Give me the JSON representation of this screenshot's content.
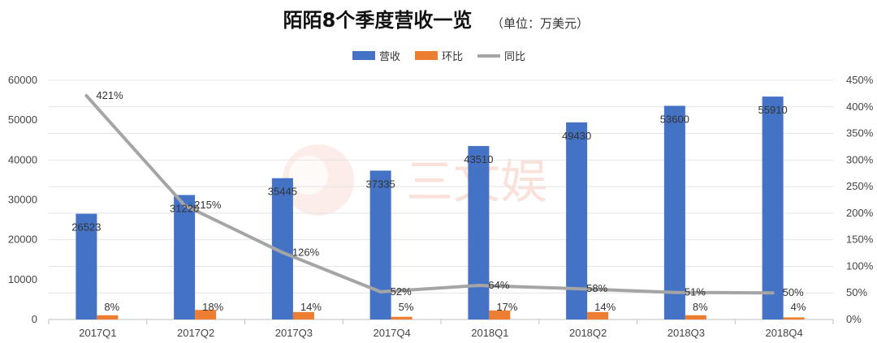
{
  "chart_data": {
    "type": "bar",
    "title": "陌陌8个季度营收一览",
    "subtitle": "（单位：万美元）",
    "categories": [
      "2017Q1",
      "2017Q2",
      "2017Q3",
      "2017Q4",
      "2018Q1",
      "2018Q2",
      "2018Q3",
      "2018Q4"
    ],
    "series": [
      {
        "name": "营收",
        "kind": "bar",
        "axis": "left",
        "values": [
          26523,
          31220,
          35445,
          37335,
          43510,
          49430,
          53600,
          55910
        ],
        "labels": [
          "26523",
          "31220",
          "35445",
          "37335",
          "43510",
          "49430",
          "53600",
          "55910"
        ]
      },
      {
        "name": "环比",
        "kind": "bar",
        "axis": "right",
        "values": [
          8,
          18,
          14,
          5,
          17,
          14,
          8,
          4
        ],
        "labels": [
          "8%",
          "18%",
          "14%",
          "5%",
          "17%",
          "14%",
          "8%",
          "4%"
        ]
      },
      {
        "name": "同比",
        "kind": "line",
        "axis": "right",
        "values": [
          421,
          215,
          126,
          52,
          64,
          58,
          51,
          50
        ],
        "labels": [
          "421%",
          "215%",
          "126%",
          "52%",
          "64%",
          "58%",
          "51%",
          "50%"
        ]
      }
    ],
    "y_left": {
      "lim": [
        0,
        60000
      ],
      "ticks": [
        "0",
        "10000",
        "20000",
        "30000",
        "40000",
        "50000",
        "60000"
      ]
    },
    "y_right": {
      "lim": [
        0,
        450
      ],
      "ticks": [
        "0%",
        "50%",
        "100%",
        "150%",
        "200%",
        "250%",
        "300%",
        "350%",
        "400%",
        "450%"
      ]
    },
    "grid": true,
    "legend_position": "top-center",
    "colors": {
      "营收": "#4472c4",
      "环比": "#ed7d31",
      "同比": "#a5a5a5"
    },
    "watermark": "三文娱"
  }
}
